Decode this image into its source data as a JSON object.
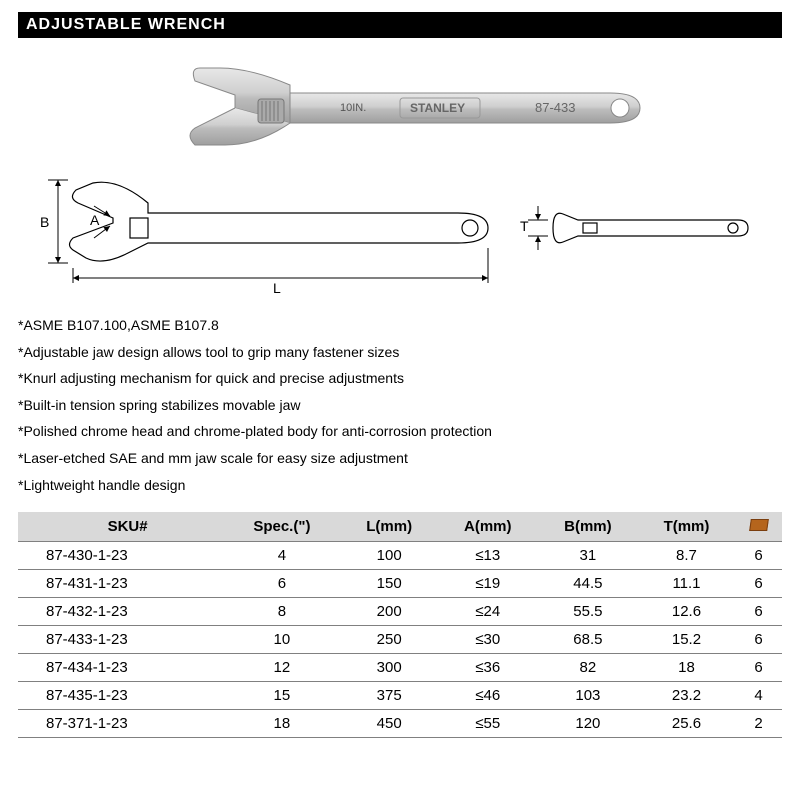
{
  "title": "ADJUSTABLE WRENCH",
  "hero": {
    "brand": "STANLEY",
    "model": "87-433",
    "size_label": "10IN."
  },
  "diagram": {
    "labels": {
      "A": "A",
      "B": "B",
      "L": "L",
      "T": "T"
    }
  },
  "features": [
    "ASME B107.100,ASME B107.8",
    "Adjustable jaw design allows tool to grip many fastener sizes",
    "Knurl adjusting mechanism for quick and precise adjustments",
    "Built-in tension spring stabilizes movable jaw",
    "Polished chrome head and chrome-plated body for anti-corrosion protection",
    "Laser-etched SAE and mm jaw scale for easy size adjustment",
    "Lightweight handle design"
  ],
  "table": {
    "columns": [
      "SKU#",
      "Spec.(\")",
      "L(mm)",
      "A(mm)",
      "B(mm)",
      "T(mm)",
      "BOX"
    ],
    "header_bg": "#d9d9d9",
    "border_color": "#808080",
    "rows": [
      [
        "87-430-1-23",
        "4",
        "100",
        "≤13",
        "31",
        "8.7",
        "6"
      ],
      [
        "87-431-1-23",
        "6",
        "150",
        "≤19",
        "44.5",
        "11.1",
        "6"
      ],
      [
        "87-432-1-23",
        "8",
        "200",
        "≤24",
        "55.5",
        "12.6",
        "6"
      ],
      [
        "87-433-1-23",
        "10",
        "250",
        "≤30",
        "68.5",
        "15.2",
        "6"
      ],
      [
        "87-434-1-23",
        "12",
        "300",
        "≤36",
        "82",
        "18",
        "6"
      ],
      [
        "87-435-1-23",
        "15",
        "375",
        "≤46",
        "103",
        "23.2",
        "4"
      ],
      [
        "87-371-1-23",
        "18",
        "450",
        "≤55",
        "120",
        "25.6",
        "2"
      ]
    ]
  },
  "colors": {
    "title_bg": "#000000",
    "title_fg": "#ffffff",
    "page_bg": "#ffffff",
    "wrench_fill": "#c8c8c8",
    "wrench_stroke": "#888888"
  }
}
